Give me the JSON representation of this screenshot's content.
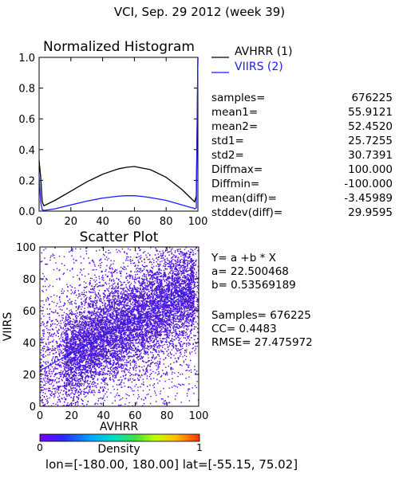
{
  "page_title": "VCI,  Sep. 29 2012 (week 39)",
  "histogram": {
    "title": "Normalized Histogram",
    "xticks": [
      "0",
      "20",
      "40",
      "60",
      "80",
      "100"
    ],
    "yticks": [
      "0.0",
      "0.2",
      "0.4",
      "0.6",
      "0.8",
      "1.0"
    ],
    "legend": [
      {
        "label": "AVHRR (1)",
        "color": "#000000"
      },
      {
        "label": "VIIRS (2)",
        "color": "#1a1aff"
      }
    ]
  },
  "stats": [
    {
      "label": "samples=",
      "value": "676225"
    },
    {
      "label": "mean1=",
      "value": "55.9121"
    },
    {
      "label": "mean2=",
      "value": "52.4520"
    },
    {
      "label": "std1=",
      "value": "25.7255"
    },
    {
      "label": "std2=",
      "value": "30.7391"
    },
    {
      "label": "Diffmax=",
      "value": "100.000"
    },
    {
      "label": "Diffmin=",
      "value": "-100.000"
    },
    {
      "label": "mean(diff)=",
      "value": "-3.45989"
    },
    {
      "label": "stddev(diff)=",
      "value": "29.9595"
    }
  ],
  "scatter": {
    "title": "Scatter Plot",
    "xlabel": "AVHRR",
    "ylabel": "VIIRS",
    "xticks": [
      "0",
      "20",
      "40",
      "60",
      "80",
      "100"
    ],
    "yticks": [
      "0",
      "20",
      "40",
      "60",
      "80",
      "100"
    ],
    "regression_lines": [
      "Y= a +b * X",
      "a= 22.500468",
      "b= 0.53569189"
    ],
    "fit_stats": [
      "Samples= 676225",
      "CC=  0.4483",
      "RMSE= 27.475972"
    ]
  },
  "colorbar": {
    "label": "Density",
    "min": "0",
    "max": "1"
  },
  "footer": "lon=[-180.00, 180.00] lat=[-55.15, 75.02]",
  "chart_data": [
    {
      "type": "line",
      "title": "Normalized Histogram",
      "xlim": [
        0,
        100
      ],
      "ylim": [
        0,
        1
      ],
      "x": [
        0,
        1,
        2,
        3,
        4,
        10,
        20,
        30,
        40,
        50,
        55,
        60,
        65,
        70,
        80,
        90,
        95,
        97,
        98,
        99,
        100
      ],
      "series": [
        {
          "name": "AVHRR (1)",
          "color": "#000000",
          "values": [
            0.33,
            0.22,
            0.06,
            0.035,
            0.04,
            0.07,
            0.13,
            0.19,
            0.24,
            0.275,
            0.285,
            0.29,
            0.28,
            0.27,
            0.22,
            0.14,
            0.09,
            0.07,
            0.06,
            0.1,
            1.0
          ]
        },
        {
          "name": "VIIRS (2)",
          "color": "#1a1aff",
          "values": [
            0.23,
            0.06,
            0.008,
            0.005,
            0.006,
            0.015,
            0.04,
            0.065,
            0.085,
            0.097,
            0.1,
            0.1,
            0.095,
            0.088,
            0.07,
            0.04,
            0.025,
            0.02,
            0.015,
            0.02,
            1.0
          ]
        }
      ]
    },
    {
      "type": "scatter",
      "title": "Scatter Plot",
      "xlabel": "AVHRR",
      "ylabel": "VIIRS",
      "xlim": [
        0,
        100
      ],
      "ylim": [
        0,
        100
      ],
      "regression": {
        "a": 22.500468,
        "b": 0.53569189
      },
      "colorbar": {
        "label": "Density",
        "range": [
          0,
          1
        ]
      }
    }
  ]
}
